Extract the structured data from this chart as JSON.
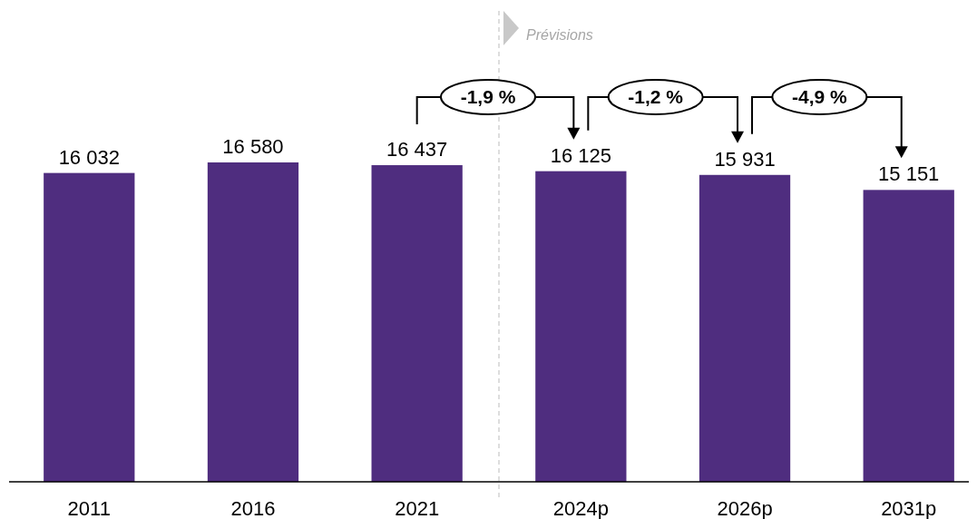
{
  "chart_data": {
    "type": "bar",
    "categories": [
      "2011",
      "2016",
      "2021",
      "2024p",
      "2026p",
      "2031p"
    ],
    "values": [
      16032,
      16580,
      16437,
      16125,
      15931,
      15151
    ],
    "color": "#4f2d7f",
    "data_labels": true,
    "value_labels": [
      "16 032",
      "16 580",
      "16 437",
      "16 125",
      "15 931",
      "15 151"
    ],
    "annotations": [
      "Prévisions",
      "-1,9 %",
      "-1,2 %",
      "-4,9 %"
    ]
  }
}
